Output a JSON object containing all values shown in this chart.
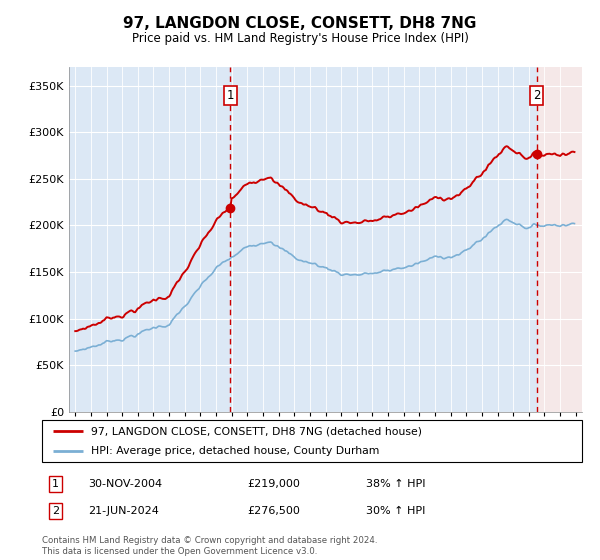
{
  "title": "97, LANGDON CLOSE, CONSETT, DH8 7NG",
  "subtitle": "Price paid vs. HM Land Registry's House Price Index (HPI)",
  "legend_line1": "97, LANGDON CLOSE, CONSETT, DH8 7NG (detached house)",
  "legend_line2": "HPI: Average price, detached house, County Durham",
  "marker1_date": "30-NOV-2004",
  "marker1_price": 219000,
  "marker1_label": "38% ↑ HPI",
  "marker2_date": "21-JUN-2024",
  "marker2_price": 276500,
  "marker2_label": "30% ↑ HPI",
  "footer": "Contains HM Land Registry data © Crown copyright and database right 2024.\nThis data is licensed under the Open Government Licence v3.0.",
  "hpi_color": "#7bafd4",
  "price_color": "#cc0000",
  "marker_line_color": "#cc0000",
  "ylim": [
    0,
    370000
  ],
  "yticks": [
    0,
    50000,
    100000,
    150000,
    200000,
    250000,
    300000,
    350000
  ],
  "xlim_start": 1994.6,
  "xlim_end": 2027.4,
  "bg_color": "#dce8f5",
  "future_bg": "#eedede",
  "grid_color": "#ffffff"
}
